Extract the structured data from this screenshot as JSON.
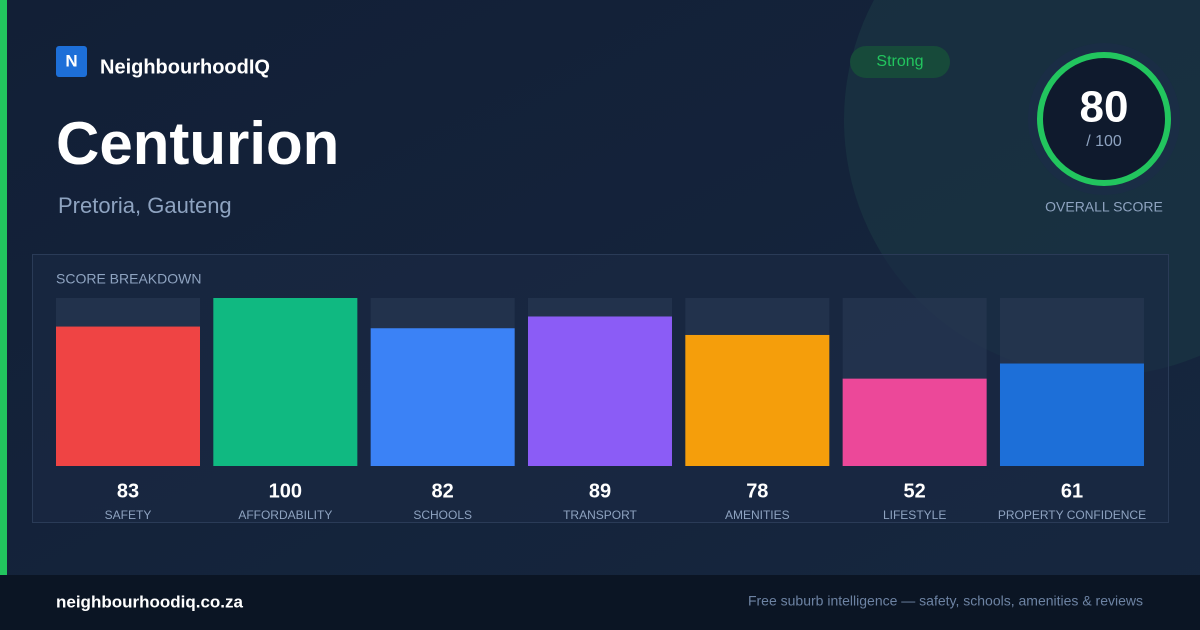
{
  "brand": {
    "logo": "N",
    "name": "NeighbourhoodIQ"
  },
  "title": "Centurion",
  "subtitle": "Pretoria, Gauteng",
  "badge": "Strong",
  "overall": {
    "score": 80,
    "max": "/ 100",
    "label": "OVERALL SCORE"
  },
  "chart_data": {
    "type": "bar",
    "title": "SCORE BREAKDOWN",
    "categories": [
      "SAFETY",
      "AFFORDABILITY",
      "SCHOOLS",
      "TRANSPORT",
      "AMENITIES",
      "LIFESTYLE",
      "PROPERTY CONFIDENCE"
    ],
    "values": [
      83,
      100,
      82,
      89,
      78,
      52,
      61
    ],
    "colors": [
      "#ef4444",
      "#10b981",
      "#3b82f6",
      "#8b5cf6",
      "#f59e0b",
      "#ec4899",
      "#1d6fd8"
    ],
    "ylim": [
      0,
      100
    ]
  },
  "footer": {
    "site": "neighbourhoodiq.co.za",
    "tagline": "Free suburb intelligence — safety, schools, amenities & reviews"
  }
}
